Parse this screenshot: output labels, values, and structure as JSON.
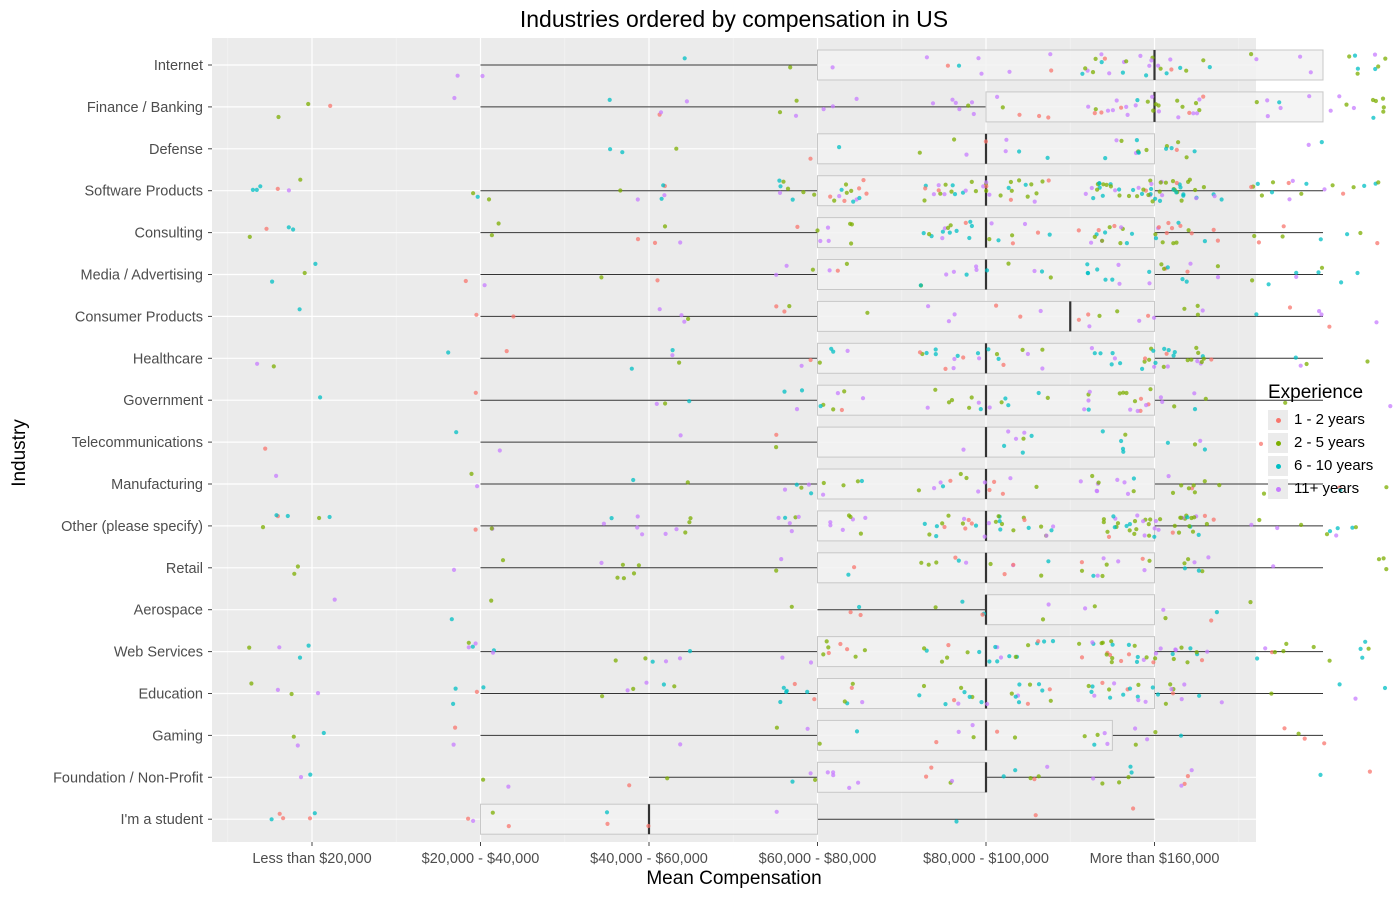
{
  "chart_data": {
    "type": "boxplot-jitter",
    "title": "Industries ordered by compensation in US",
    "xlabel": "Mean Compensation",
    "ylabel": "Industry",
    "x_ticks": [
      "Less than $20,000",
      "$20,000 - $40,000",
      "$40,000 - $60,000",
      "$60,000 - $80,000",
      "$80,000 - $100,000",
      "More than $160,000"
    ],
    "grid": true,
    "legend": {
      "title": "Experience",
      "placement": "right",
      "entries": [
        {
          "name": "1 - 2 years",
          "color": "#F8766D"
        },
        {
          "name": "2 - 5 years",
          "color": "#7CAE00"
        },
        {
          "name": "6 - 10 years",
          "color": "#00BFC4"
        },
        {
          "name": "11+ years",
          "color": "#C77CFF"
        }
      ]
    },
    "industries": [
      {
        "name": "Internet",
        "q1": 3,
        "median": 5,
        "q3": 6,
        "whisker_low": 1,
        "whisker_high": 6,
        "density": [
          0,
          2,
          1,
          2,
          8,
          14,
          12,
          12
        ],
        "mix": [
          0.1,
          0.25,
          0.2,
          0.45
        ]
      },
      {
        "name": "Finance / Banking",
        "q1": 4,
        "median": 5,
        "q3": 6,
        "whisker_low": 1,
        "whisker_high": 6,
        "density": [
          3,
          1,
          4,
          6,
          12,
          14,
          14,
          16
        ],
        "mix": [
          0.12,
          0.3,
          0.1,
          0.48
        ]
      },
      {
        "name": "Defense",
        "q1": 3,
        "median": 4,
        "q3": 5,
        "whisker_low": 3,
        "whisker_high": 5,
        "density": [
          0,
          0,
          3,
          2,
          8,
          8,
          8,
          2
        ],
        "mix": [
          0.1,
          0.35,
          0.3,
          0.25
        ]
      },
      {
        "name": "Software Products",
        "q1": 3,
        "median": 4,
        "q3": 5,
        "whisker_low": 1,
        "whisker_high": 6,
        "density": [
          6,
          3,
          6,
          22,
          35,
          32,
          26,
          18
        ],
        "mix": [
          0.12,
          0.35,
          0.28,
          0.25
        ]
      },
      {
        "name": "Consulting",
        "q1": 3,
        "median": 4,
        "q3": 5,
        "whisker_low": 1,
        "whisker_high": 6,
        "density": [
          4,
          2,
          4,
          8,
          22,
          18,
          14,
          8
        ],
        "mix": [
          0.12,
          0.35,
          0.28,
          0.25
        ]
      },
      {
        "name": "Media / Advertising",
        "q1": 3,
        "median": 4,
        "q3": 5,
        "whisker_low": 1,
        "whisker_high": 6,
        "density": [
          3,
          2,
          2,
          6,
          12,
          10,
          10,
          8
        ],
        "mix": [
          0.1,
          0.3,
          0.25,
          0.35
        ]
      },
      {
        "name": "Consumer Products",
        "q1": 3,
        "median": 4.5,
        "q3": 5,
        "whisker_low": 1,
        "whisker_high": 6,
        "density": [
          1,
          2,
          4,
          4,
          6,
          6,
          6,
          6
        ],
        "mix": [
          0.2,
          0.3,
          0.15,
          0.35
        ]
      },
      {
        "name": "Healthcare",
        "q1": 3,
        "median": 4,
        "q3": 5,
        "whisker_low": 1,
        "whisker_high": 6,
        "density": [
          2,
          2,
          4,
          6,
          20,
          18,
          14,
          4
        ],
        "mix": [
          0.12,
          0.35,
          0.23,
          0.3
        ]
      },
      {
        "name": "Government",
        "q1": 3,
        "median": 4,
        "q3": 5,
        "whisker_low": 1,
        "whisker_high": 6,
        "density": [
          1,
          1,
          3,
          10,
          14,
          12,
          10,
          2
        ],
        "mix": [
          0.1,
          0.4,
          0.25,
          0.25
        ]
      },
      {
        "name": "Telecommunications",
        "q1": 3,
        "median": 4,
        "q3": 5,
        "whisker_low": 1,
        "whisker_high": 5,
        "density": [
          1,
          2,
          1,
          2,
          8,
          6,
          3,
          1
        ],
        "mix": [
          0.2,
          0.35,
          0.3,
          0.15
        ]
      },
      {
        "name": "Manufacturing",
        "q1": 3,
        "median": 4,
        "q3": 5,
        "whisker_low": 1,
        "whisker_high": 6,
        "density": [
          1,
          2,
          2,
          10,
          14,
          10,
          10,
          4
        ],
        "mix": [
          0.15,
          0.4,
          0.15,
          0.3
        ]
      },
      {
        "name": "Other (please specify)",
        "q1": 3,
        "median": 4,
        "q3": 5,
        "whisker_low": 1,
        "whisker_high": 6,
        "density": [
          6,
          3,
          10,
          14,
          30,
          26,
          20,
          10
        ],
        "mix": [
          0.12,
          0.38,
          0.25,
          0.25
        ]
      },
      {
        "name": "Retail",
        "q1": 3,
        "median": 4,
        "q3": 5,
        "whisker_low": 1,
        "whisker_high": 6,
        "density": [
          2,
          2,
          6,
          4,
          12,
          10,
          8,
          4
        ],
        "mix": [
          0.15,
          0.4,
          0.2,
          0.25
        ]
      },
      {
        "name": "Aerospace",
        "q1": 4,
        "median": 4,
        "q3": 5,
        "whisker_low": 3,
        "whisker_high": 5,
        "density": [
          1,
          2,
          0,
          4,
          6,
          4,
          2,
          1
        ],
        "mix": [
          0.25,
          0.4,
          0.2,
          0.15
        ]
      },
      {
        "name": "Web Services",
        "q1": 3,
        "median": 4,
        "q3": 5,
        "whisker_low": 1,
        "whisker_high": 6,
        "density": [
          4,
          6,
          6,
          10,
          20,
          20,
          16,
          12
        ],
        "mix": [
          0.12,
          0.35,
          0.28,
          0.25
        ]
      },
      {
        "name": "Education",
        "q1": 3,
        "median": 4,
        "q3": 5,
        "whisker_low": 1,
        "whisker_high": 6,
        "density": [
          4,
          4,
          6,
          12,
          22,
          16,
          10,
          4
        ],
        "mix": [
          0.15,
          0.4,
          0.28,
          0.17
        ]
      },
      {
        "name": "Gaming",
        "q1": 3,
        "median": 4,
        "q3": 4.75,
        "whisker_low": 1,
        "whisker_high": 6,
        "density": [
          3,
          2,
          1,
          4,
          6,
          6,
          4,
          4
        ],
        "mix": [
          0.1,
          0.4,
          0.2,
          0.3
        ]
      },
      {
        "name": "Foundation / Non-Profit",
        "q1": 3,
        "median": 4,
        "q3": 4,
        "whisker_low": 2,
        "whisker_high": 5,
        "density": [
          2,
          2,
          2,
          8,
          10,
          6,
          4,
          2
        ],
        "mix": [
          0.15,
          0.3,
          0.3,
          0.25
        ]
      },
      {
        "name": "I'm a student",
        "q1": 1,
        "median": 2,
        "q3": 3,
        "whisker_low": 1,
        "whisker_high": 5,
        "density": [
          5,
          4,
          3,
          1,
          2,
          1,
          0,
          0
        ],
        "mix": [
          0.4,
          0.3,
          0.2,
          0.1
        ]
      }
    ]
  }
}
